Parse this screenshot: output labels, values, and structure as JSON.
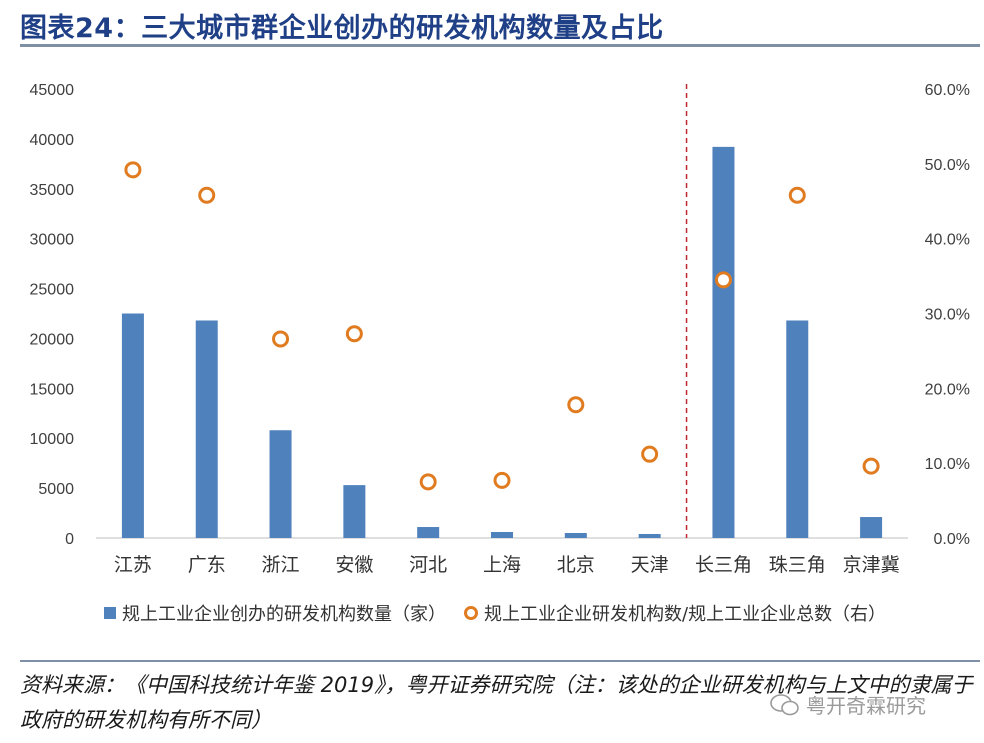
{
  "title": "图表24：三大城市群企业创办的研发机构数量及占比",
  "legend": {
    "bar_label": "规上工业企业创办的研发机构数量（家）",
    "dot_label": "规上工业企业研发机构数/规上工业企业总数（右）"
  },
  "source": "资料来源：《中国科技统计年鉴 2019》，粤开证券研究院（注：该处的企业研发机构与上文中的隶属于政府的研发机构有所不同）",
  "watermark": "粤开奇霖研究",
  "colors": {
    "bar": "#4f81bd",
    "dot": "#e07b20",
    "divider": "#c0282d",
    "title": "#1f3f86"
  },
  "chart_data": {
    "type": "bar",
    "categories": [
      "江苏",
      "广东",
      "浙江",
      "安徽",
      "河北",
      "上海",
      "北京",
      "天津",
      "长三角",
      "珠三角",
      "京津冀"
    ],
    "series": [
      {
        "name": "规上工业企业创办的研发机构数量（家）",
        "type": "bar",
        "axis": "left",
        "values": [
          22500,
          21800,
          10800,
          5300,
          1100,
          600,
          500,
          400,
          39200,
          21800,
          2100
        ]
      },
      {
        "name": "规上工业企业研发机构数/规上工业企业总数（右）",
        "type": "scatter",
        "axis": "right",
        "values": [
          49.2,
          45.8,
          26.6,
          27.3,
          7.5,
          7.7,
          17.8,
          11.2,
          34.5,
          45.8,
          9.6
        ]
      }
    ],
    "left_axis": {
      "ylim": [
        0,
        45000
      ],
      "ticks": [
        "0",
        "5000",
        "10000",
        "15000",
        "20000",
        "25000",
        "30000",
        "35000",
        "40000",
        "45000"
      ]
    },
    "right_axis": {
      "ylim": [
        0,
        60
      ],
      "ticks": [
        "0.0%",
        "10.0%",
        "20.0%",
        "30.0%",
        "40.0%",
        "50.0%",
        "60.0%"
      ]
    },
    "divider_after_category": "天津",
    "grid": false,
    "legend_position": "bottom"
  }
}
